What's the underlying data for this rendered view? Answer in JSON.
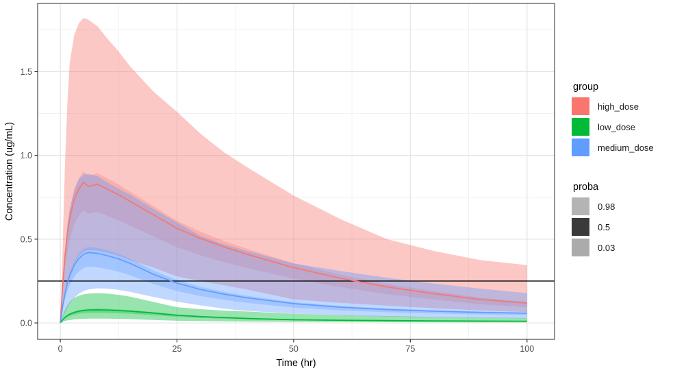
{
  "chart_data": {
    "type": "area",
    "title": "",
    "xlabel": "Time (hr)",
    "ylabel": "Concentration (ug/mL)",
    "xlim": [
      -4.85,
      105.9
    ],
    "ylim": [
      -0.098,
      1.907
    ],
    "x_ticks": [
      0,
      25,
      50,
      75,
      100
    ],
    "x_tick_labels": [
      "0",
      "25",
      "50",
      "75",
      "100"
    ],
    "x_minor_ticks": [
      12.5,
      37.5,
      62.5,
      87.5
    ],
    "y_ticks": [
      0,
      0.5,
      1.0,
      1.5
    ],
    "y_tick_labels": [
      "0.0",
      "0.5",
      "1.0",
      "1.5"
    ],
    "y_minor_ticks": [
      0.25,
      0.75,
      1.25,
      1.75
    ],
    "grid": true,
    "legend_position": "right",
    "hline": 0.25,
    "band_probabilities": [
      0.98,
      0.5,
      0.03
    ],
    "x": [
      0,
      0.5,
      1,
      1.5,
      2,
      3,
      4,
      5,
      6,
      8,
      10,
      12.5,
      15,
      20,
      25,
      30,
      35,
      40,
      50,
      60,
      70,
      80,
      90,
      100
    ],
    "series": [
      {
        "name": "high_dose",
        "color": "#F8766D",
        "median": [
          0,
          0.22,
          0.4,
          0.53,
          0.62,
          0.74,
          0.8,
          0.84,
          0.815,
          0.828,
          0.8,
          0.765,
          0.725,
          0.645,
          0.565,
          0.505,
          0.455,
          0.41,
          0.33,
          0.267,
          0.215,
          0.175,
          0.14,
          0.118
        ],
        "p98_upper": [
          0,
          0.45,
          0.95,
          1.3,
          1.55,
          1.72,
          1.79,
          1.82,
          1.81,
          1.77,
          1.7,
          1.62,
          1.53,
          1.38,
          1.26,
          1.13,
          1.02,
          0.93,
          0.76,
          0.62,
          0.5,
          0.43,
          0.375,
          0.345
        ],
        "p98_lower": [
          0,
          0.1,
          0.18,
          0.245,
          0.29,
          0.355,
          0.4,
          0.425,
          0.435,
          0.432,
          0.42,
          0.4,
          0.375,
          0.33,
          0.278,
          0.25,
          0.225,
          0.2,
          0.14,
          0.12,
          0.103,
          0.088,
          0.075,
          0.065
        ],
        "p50_upper": [
          0,
          0.24,
          0.43,
          0.57,
          0.67,
          0.8,
          0.864,
          0.905,
          0.88,
          0.893,
          0.864,
          0.826,
          0.783,
          0.697,
          0.61,
          0.545,
          0.491,
          0.443,
          0.356,
          0.288,
          0.232,
          0.189,
          0.151,
          0.127
        ],
        "p50_lower": [
          0,
          0.176,
          0.32,
          0.424,
          0.496,
          0.592,
          0.64,
          0.672,
          0.652,
          0.662,
          0.64,
          0.612,
          0.58,
          0.516,
          0.452,
          0.404,
          0.364,
          0.328,
          0.264,
          0.214,
          0.172,
          0.14,
          0.112,
          0.094
        ]
      },
      {
        "name": "low_dose",
        "color": "#00BA38",
        "median": [
          0,
          0.018,
          0.033,
          0.044,
          0.052,
          0.063,
          0.07,
          0.074,
          0.077,
          0.078,
          0.077,
          0.074,
          0.07,
          0.059,
          0.046,
          0.038,
          0.032,
          0.027,
          0.019,
          0.016,
          0.014,
          0.012,
          0.011,
          0.01
        ],
        "p98_upper": [
          0,
          0.042,
          0.078,
          0.105,
          0.125,
          0.15,
          0.163,
          0.171,
          0.175,
          0.178,
          0.175,
          0.168,
          0.157,
          0.125,
          0.094,
          0.082,
          0.074,
          0.068,
          0.055,
          0.047,
          0.041,
          0.036,
          0.032,
          0.03
        ],
        "p98_lower": [
          0,
          0.006,
          0.011,
          0.015,
          0.017,
          0.021,
          0.023,
          0.0245,
          0.0255,
          0.026,
          0.0255,
          0.024,
          0.023,
          0.018,
          0.013,
          0.011,
          0.0095,
          0.008,
          0.006,
          0.005,
          0.0045,
          0.004,
          0.0035,
          0.003
        ],
        "p50_upper": [
          0,
          0.02,
          0.036,
          0.048,
          0.057,
          0.069,
          0.077,
          0.081,
          0.085,
          0.086,
          0.085,
          0.081,
          0.077,
          0.065,
          0.051,
          0.042,
          0.035,
          0.03,
          0.021,
          0.018,
          0.015,
          0.013,
          0.012,
          0.011
        ],
        "p50_lower": [
          0,
          0.014,
          0.026,
          0.034,
          0.041,
          0.049,
          0.055,
          0.058,
          0.06,
          0.061,
          0.06,
          0.058,
          0.055,
          0.046,
          0.036,
          0.03,
          0.025,
          0.021,
          0.015,
          0.012,
          0.01,
          0.009,
          0.0086,
          0.0078
        ]
      },
      {
        "name": "medium_dose",
        "color": "#619CFF",
        "median": [
          0,
          0.1,
          0.175,
          0.235,
          0.28,
          0.345,
          0.385,
          0.41,
          0.42,
          0.415,
          0.402,
          0.382,
          0.355,
          0.29,
          0.237,
          0.2,
          0.172,
          0.15,
          0.115,
          0.094,
          0.08,
          0.07,
          0.063,
          0.058
        ],
        "p98_upper": [
          0,
          0.22,
          0.42,
          0.58,
          0.68,
          0.79,
          0.86,
          0.885,
          0.89,
          0.875,
          0.84,
          0.8,
          0.765,
          0.68,
          0.6,
          0.52,
          0.47,
          0.43,
          0.355,
          0.31,
          0.27,
          0.235,
          0.205,
          0.178
        ],
        "p98_lower": [
          0,
          0.03,
          0.06,
          0.09,
          0.115,
          0.15,
          0.175,
          0.19,
          0.2,
          0.207,
          0.205,
          0.198,
          0.185,
          0.155,
          0.127,
          0.105,
          0.085,
          0.072,
          0.056,
          0.046,
          0.038,
          0.033,
          0.03,
          0.027
        ],
        "p50_upper": [
          0,
          0.108,
          0.189,
          0.254,
          0.302,
          0.373,
          0.416,
          0.443,
          0.454,
          0.448,
          0.434,
          0.413,
          0.383,
          0.313,
          0.256,
          0.216,
          0.186,
          0.162,
          0.124,
          0.102,
          0.086,
          0.076,
          0.068,
          0.063
        ],
        "p50_lower": [
          0,
          0.08,
          0.14,
          0.188,
          0.224,
          0.276,
          0.308,
          0.328,
          0.336,
          0.332,
          0.322,
          0.306,
          0.284,
          0.232,
          0.19,
          0.16,
          0.138,
          0.12,
          0.092,
          0.075,
          0.064,
          0.056,
          0.05,
          0.046
        ]
      }
    ]
  },
  "legend": {
    "group": {
      "title": "group",
      "entries": [
        {
          "label": "high_dose",
          "color": "#F8766D"
        },
        {
          "label": "low_dose",
          "color": "#00BA38"
        },
        {
          "label": "medium_dose",
          "color": "#619CFF"
        }
      ]
    },
    "proba": {
      "title": "proba",
      "entries": [
        {
          "label": "0.98",
          "color": "#B4B4B4"
        },
        {
          "label": "0.5",
          "color": "#3A3A3A"
        },
        {
          "label": "0.03",
          "color": "#ABABAB"
        }
      ]
    }
  },
  "styles": {
    "axis_text_color": "#4D4D4D",
    "axis_title_color": "#000000",
    "grid_major_color": "#E4E4E4",
    "grid_minor_color": "#F1F1F1",
    "panel_border_color": "#4D4D4D",
    "hline_color": "#000000",
    "ribbon_opacity_98": 0.4,
    "ribbon_opacity_50": 0.3
  }
}
